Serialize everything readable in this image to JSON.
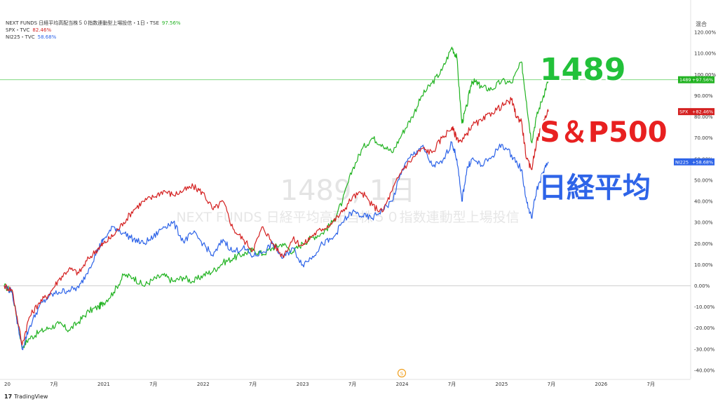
{
  "header": {
    "symbol_title": "NEXT FUNDS 日経平均高配当株５０指数連動型上場投信・1日・TSE",
    "mode_button": "混合"
  },
  "legend": [
    {
      "label": "NEXT FUNDS 日経平均高配当株５０指数連動型上場投信・1日・TSE",
      "change": "97.56%",
      "color": "#22b322"
    },
    {
      "label": "SPX・TVC",
      "change": "82.46%",
      "color": "#d42020"
    },
    {
      "label": "NI225・TVC",
      "change": "58.68%",
      "color": "#2e64e8"
    }
  ],
  "watermark": {
    "line1": "1489, 1日",
    "line2": "NEXT FUNDS 日経平均高配当株５０指数連動型上場投信"
  },
  "annotations": [
    {
      "text": "1489",
      "color": "#22c13a"
    },
    {
      "text": "S＆P500",
      "color": "#e82020"
    },
    {
      "text": "日経平均",
      "color": "#2e64e8"
    }
  ],
  "footer": {
    "brand_mark": "17",
    "brand_name": "TradingView",
    "event_marker": "S"
  },
  "chart_data": {
    "type": "line",
    "title": "NEXT FUNDS 日経平均高配当株５０指数連動型上場投信・1日・TSE",
    "xlabel": "",
    "ylabel": "",
    "x_tick_labels": [
      "20",
      "7月",
      "2021",
      "7月",
      "2022",
      "7月",
      "2023",
      "7月",
      "2024",
      "7月",
      "2025",
      "7月",
      "2026",
      "7月"
    ],
    "x_ticks_year": [
      2020.0,
      2020.5,
      2021.0,
      2021.5,
      2022.0,
      2022.5,
      2023.0,
      2023.5,
      2024.0,
      2024.5,
      2025.0,
      2025.5,
      2026.0,
      2026.5
    ],
    "y_ticks": [
      120,
      110,
      100,
      90,
      80,
      70,
      60,
      50,
      40,
      30,
      20,
      10,
      0,
      -10,
      -20,
      -30,
      -40
    ],
    "y_tick_labels": [
      "120.00%",
      "110.00%",
      "100.00%",
      "90.00%",
      "80.00%",
      "70.00%",
      "60.00%",
      "50.00%",
      "40.00%",
      "30.00%",
      "20.00%",
      "10.00%",
      "0.00%",
      "-10.00%",
      "-20.00%",
      "-30.00%",
      "-40.00%"
    ],
    "ylim": [
      -44,
      128
    ],
    "xlim": [
      2020.0,
      2026.9
    ],
    "legend_position": "top-left",
    "grid": false,
    "series": [
      {
        "name": "1489",
        "color": "#22b322",
        "last_label": "1489",
        "last_value": 97.56,
        "last_value_label": "+97.56%",
        "points": [
          [
            2020.0,
            0
          ],
          [
            2020.08,
            -3
          ],
          [
            2020.18,
            -29
          ],
          [
            2020.25,
            -25
          ],
          [
            2020.35,
            -22
          ],
          [
            2020.45,
            -20
          ],
          [
            2020.55,
            -18
          ],
          [
            2020.65,
            -21
          ],
          [
            2020.75,
            -17
          ],
          [
            2020.85,
            -12
          ],
          [
            2020.95,
            -10
          ],
          [
            2021.0,
            -8
          ],
          [
            2021.1,
            -3
          ],
          [
            2021.2,
            5
          ],
          [
            2021.3,
            4
          ],
          [
            2021.4,
            0
          ],
          [
            2021.5,
            3
          ],
          [
            2021.6,
            5
          ],
          [
            2021.7,
            2
          ],
          [
            2021.8,
            4
          ],
          [
            2021.9,
            2
          ],
          [
            2022.0,
            5
          ],
          [
            2022.1,
            7
          ],
          [
            2022.2,
            11
          ],
          [
            2022.3,
            13
          ],
          [
            2022.4,
            15
          ],
          [
            2022.5,
            17
          ],
          [
            2022.6,
            15
          ],
          [
            2022.7,
            18
          ],
          [
            2022.8,
            20
          ],
          [
            2022.9,
            16
          ],
          [
            2023.0,
            20
          ],
          [
            2023.1,
            23
          ],
          [
            2023.2,
            25
          ],
          [
            2023.3,
            30
          ],
          [
            2023.4,
            40
          ],
          [
            2023.5,
            55
          ],
          [
            2023.6,
            65
          ],
          [
            2023.7,
            70
          ],
          [
            2023.8,
            67
          ],
          [
            2023.9,
            63
          ],
          [
            2024.0,
            72
          ],
          [
            2024.1,
            80
          ],
          [
            2024.2,
            90
          ],
          [
            2024.3,
            96
          ],
          [
            2024.4,
            102
          ],
          [
            2024.5,
            113
          ],
          [
            2024.55,
            108
          ],
          [
            2024.6,
            77
          ],
          [
            2024.65,
            85
          ],
          [
            2024.7,
            97
          ],
          [
            2024.75,
            96
          ],
          [
            2024.8,
            94
          ],
          [
            2024.9,
            93
          ],
          [
            2025.0,
            97
          ],
          [
            2025.1,
            96
          ],
          [
            2025.2,
            106
          ],
          [
            2025.25,
            87
          ],
          [
            2025.3,
            68
          ],
          [
            2025.35,
            80
          ],
          [
            2025.42,
            90
          ],
          [
            2025.47,
            97.56
          ]
        ]
      },
      {
        "name": "SPX",
        "color": "#d42020",
        "last_label": "SPX",
        "last_value": 82.46,
        "last_value_label": "+82.46%",
        "points": [
          [
            2020.0,
            0
          ],
          [
            2020.08,
            -2
          ],
          [
            2020.18,
            -28
          ],
          [
            2020.25,
            -15
          ],
          [
            2020.35,
            -8
          ],
          [
            2020.45,
            -4
          ],
          [
            2020.55,
            3
          ],
          [
            2020.65,
            8
          ],
          [
            2020.75,
            6
          ],
          [
            2020.85,
            13
          ],
          [
            2020.95,
            18
          ],
          [
            2021.0,
            20
          ],
          [
            2021.1,
            24
          ],
          [
            2021.2,
            30
          ],
          [
            2021.3,
            36
          ],
          [
            2021.4,
            40
          ],
          [
            2021.5,
            42
          ],
          [
            2021.6,
            45
          ],
          [
            2021.7,
            43
          ],
          [
            2021.8,
            45
          ],
          [
            2021.9,
            47
          ],
          [
            2022.0,
            44
          ],
          [
            2022.1,
            36
          ],
          [
            2022.2,
            40
          ],
          [
            2022.3,
            27
          ],
          [
            2022.4,
            22
          ],
          [
            2022.5,
            17
          ],
          [
            2022.6,
            28
          ],
          [
            2022.7,
            20
          ],
          [
            2022.8,
            14
          ],
          [
            2022.9,
            22
          ],
          [
            2023.0,
            19
          ],
          [
            2023.1,
            24
          ],
          [
            2023.2,
            27
          ],
          [
            2023.3,
            30
          ],
          [
            2023.4,
            35
          ],
          [
            2023.5,
            42
          ],
          [
            2023.6,
            44
          ],
          [
            2023.7,
            38
          ],
          [
            2023.8,
            35
          ],
          [
            2023.9,
            45
          ],
          [
            2024.0,
            55
          ],
          [
            2024.1,
            60
          ],
          [
            2024.2,
            65
          ],
          [
            2024.3,
            63
          ],
          [
            2024.4,
            70
          ],
          [
            2024.5,
            75
          ],
          [
            2024.55,
            70
          ],
          [
            2024.6,
            68
          ],
          [
            2024.7,
            76
          ],
          [
            2024.8,
            78
          ],
          [
            2024.9,
            82
          ],
          [
            2025.0,
            85
          ],
          [
            2025.1,
            88
          ],
          [
            2025.15,
            80
          ],
          [
            2025.2,
            78
          ],
          [
            2025.25,
            60
          ],
          [
            2025.3,
            55
          ],
          [
            2025.35,
            68
          ],
          [
            2025.42,
            78
          ],
          [
            2025.47,
            82.46
          ]
        ]
      },
      {
        "name": "NI225",
        "color": "#2e64e8",
        "last_label": "NI225",
        "last_value": 58.68,
        "last_value_label": "+58.68%",
        "points": [
          [
            2020.0,
            0
          ],
          [
            2020.08,
            -3
          ],
          [
            2020.18,
            -30
          ],
          [
            2020.25,
            -20
          ],
          [
            2020.35,
            -10
          ],
          [
            2020.45,
            -5
          ],
          [
            2020.55,
            -3
          ],
          [
            2020.65,
            -2
          ],
          [
            2020.75,
            -1
          ],
          [
            2020.85,
            8
          ],
          [
            2020.95,
            18
          ],
          [
            2021.0,
            22
          ],
          [
            2021.1,
            28
          ],
          [
            2021.2,
            25
          ],
          [
            2021.3,
            22
          ],
          [
            2021.4,
            20
          ],
          [
            2021.5,
            23
          ],
          [
            2021.6,
            28
          ],
          [
            2021.7,
            30
          ],
          [
            2021.8,
            21
          ],
          [
            2021.9,
            25
          ],
          [
            2022.0,
            20
          ],
          [
            2022.1,
            14
          ],
          [
            2022.2,
            22
          ],
          [
            2022.3,
            16
          ],
          [
            2022.4,
            18
          ],
          [
            2022.5,
            14
          ],
          [
            2022.6,
            16
          ],
          [
            2022.7,
            20
          ],
          [
            2022.8,
            13
          ],
          [
            2022.9,
            18
          ],
          [
            2023.0,
            10
          ],
          [
            2023.1,
            14
          ],
          [
            2023.2,
            20
          ],
          [
            2023.3,
            22
          ],
          [
            2023.4,
            30
          ],
          [
            2023.5,
            35
          ],
          [
            2023.6,
            33
          ],
          [
            2023.7,
            32
          ],
          [
            2023.8,
            36
          ],
          [
            2023.9,
            40
          ],
          [
            2024.0,
            55
          ],
          [
            2024.1,
            62
          ],
          [
            2024.2,
            66
          ],
          [
            2024.3,
            57
          ],
          [
            2024.4,
            58
          ],
          [
            2024.5,
            68
          ],
          [
            2024.55,
            60
          ],
          [
            2024.6,
            40
          ],
          [
            2024.65,
            55
          ],
          [
            2024.7,
            60
          ],
          [
            2024.8,
            57
          ],
          [
            2024.9,
            61
          ],
          [
            2025.0,
            67
          ],
          [
            2025.1,
            62
          ],
          [
            2025.2,
            55
          ],
          [
            2025.25,
            40
          ],
          [
            2025.3,
            32
          ],
          [
            2025.35,
            45
          ],
          [
            2025.42,
            54
          ],
          [
            2025.47,
            58.68
          ]
        ]
      }
    ],
    "reference_line": {
      "value": 97.56,
      "color": "#6fd46f"
    }
  }
}
